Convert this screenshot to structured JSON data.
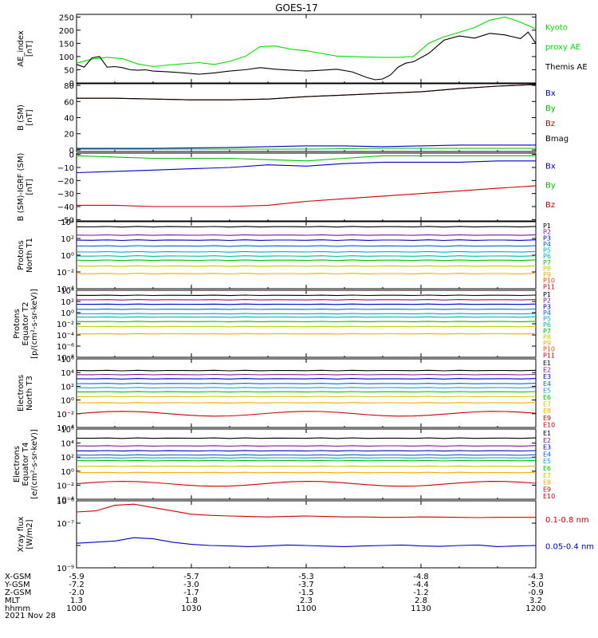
{
  "chart_data": {
    "type": "line",
    "title": "GOES-17",
    "date_label": "2021 Nov 28",
    "x_range_minutes": [
      0,
      120
    ],
    "x_ticks": [
      "1000",
      "1030",
      "1100",
      "1130",
      "1200"
    ],
    "ephemeris": [
      {
        "label": "X-GSM",
        "values": [
          "-5.9",
          "-5.7",
          "-5.3",
          "-4.8",
          "-4.3"
        ]
      },
      {
        "label": "Y-GSM",
        "values": [
          "-7.2",
          "-3.0",
          "-3.7",
          "-4.4",
          "-5.0"
        ]
      },
      {
        "label": "Z-GSM",
        "values": [
          "-2.0",
          "-1.7",
          "-1.5",
          "-1.2",
          "-0.9"
        ]
      },
      {
        "label": "MLT",
        "values": [
          "1.3",
          "1.8",
          "2.3",
          "2.8",
          "3.2"
        ]
      },
      {
        "label": "hhmm",
        "values": [
          "1000",
          "1030",
          "1100",
          "1130",
          "1200"
        ]
      }
    ],
    "panels": [
      {
        "id": "ae",
        "ylabel": [
          "AE_index",
          "[nT]"
        ],
        "scale": "linear",
        "ylim": [
          0,
          260
        ],
        "ticks": [
          0,
          50,
          100,
          150,
          200,
          250
        ],
        "tick_labels": [
          "0",
          "50",
          "100",
          "150",
          "200",
          "250"
        ],
        "series": [
          {
            "name": "Kyoto proxy AE",
            "color": "#00e000",
            "x": [
              0,
              4,
              8,
              12,
              16,
              20,
              24,
              28,
              32,
              36,
              40,
              44,
              48,
              52,
              56,
              60,
              64,
              68,
              72,
              76,
              80,
              84,
              88,
              92,
              96,
              100,
              104,
              108,
              112,
              116,
              120
            ],
            "y": [
              75,
              90,
              97,
              92,
              72,
              62,
              68,
              73,
              77,
              70,
              82,
              100,
              138,
              140,
              128,
              122,
              112,
              102,
              100,
              98,
              97,
              97,
              100,
              150,
              175,
              192,
              210,
              238,
              250,
              230,
              205
            ]
          },
          {
            "name": "Themis AE",
            "color": "#000000",
            "x": [
              0,
              2,
              4,
              6,
              8,
              10,
              12,
              14,
              16,
              18,
              20,
              24,
              28,
              32,
              36,
              40,
              44,
              48,
              52,
              56,
              60,
              64,
              68,
              72,
              76,
              78,
              80,
              82,
              84,
              86,
              88,
              92,
              96,
              100,
              104,
              108,
              112,
              116,
              118,
              120
            ],
            "y": [
              70,
              60,
              95,
              100,
              60,
              62,
              58,
              50,
              48,
              50,
              45,
              42,
              38,
              33,
              38,
              45,
              50,
              58,
              52,
              48,
              45,
              48,
              52,
              42,
              20,
              12,
              15,
              30,
              60,
              75,
              80,
              112,
              162,
              178,
              170,
              188,
              182,
              168,
              193,
              150
            ]
          }
        ]
      },
      {
        "id": "b_sm",
        "ylabel": [
          "B (SM)",
          "[nT]"
        ],
        "scale": "linear",
        "ylim": [
          -2,
          82
        ],
        "ticks": [
          0,
          20,
          40,
          60,
          80
        ],
        "tick_labels": [
          "0",
          "20",
          "40",
          "60",
          "80"
        ],
        "series": [
          {
            "name": "Bx",
            "color": "#0000cc",
            "x": [
              0,
              20,
              40,
              60,
              70,
              80,
              90,
              100,
              110,
              120
            ],
            "y": [
              2,
              2,
              3,
              5,
              5,
              4,
              5,
              6,
              6,
              6
            ]
          },
          {
            "name": "By",
            "color": "#00c000",
            "x": [
              0,
              20,
              40,
              60,
              80,
              100,
              120
            ],
            "y": [
              1,
              1,
              1,
              1,
              2,
              2,
              2
            ]
          },
          {
            "name": "Bz",
            "color": "#cc0000",
            "x": [
              0,
              10,
              20,
              30,
              40,
              50,
              60,
              70,
              80,
              90,
              100,
              110,
              120
            ],
            "y": [
              64,
              64,
              63,
              62,
              62,
              63,
              66,
              68,
              70,
              72,
              76,
              79,
              81
            ]
          },
          {
            "name": "Bmag",
            "color": "#000000",
            "x": [
              0,
              10,
              20,
              30,
              40,
              50,
              60,
              70,
              80,
              90,
              100,
              110,
              120
            ],
            "y": [
              64,
              64,
              63,
              62,
              62,
              63,
              66,
              68,
              70,
              72,
              76,
              79,
              81
            ]
          }
        ]
      },
      {
        "id": "b_igrf",
        "ylabel": [
          "B (SM)-IGRF (SM)",
          "[nT]"
        ],
        "scale": "linear",
        "ylim": [
          -51,
          1
        ],
        "ticks": [
          0,
          -10,
          -20,
          -30,
          -40,
          -50
        ],
        "tick_labels": [
          "0",
          "−10",
          "−20",
          "−30",
          "−40",
          "−50"
        ],
        "series": [
          {
            "name": "Bx",
            "color": "#0000cc",
            "x": [
              0,
              10,
              20,
              30,
              40,
              50,
              60,
              70,
              80,
              90,
              100,
              110,
              120
            ],
            "y": [
              -14,
              -13,
              -12,
              -11,
              -10,
              -8,
              -9,
              -7,
              -6,
              -6,
              -6,
              -5,
              -5
            ]
          },
          {
            "name": "By",
            "color": "#00c000",
            "x": [
              0,
              10,
              20,
              30,
              40,
              50,
              60,
              70,
              80,
              90,
              100,
              110,
              120
            ],
            "y": [
              -1,
              -2,
              -3,
              -3,
              -3,
              -4,
              -5,
              -3,
              -1,
              -1,
              -1,
              -1,
              -1
            ]
          },
          {
            "name": "Bz",
            "color": "#cc0000",
            "x": [
              0,
              10,
              20,
              30,
              40,
              50,
              60,
              70,
              80,
              90,
              100,
              110,
              120
            ],
            "y": [
              -39,
              -39,
              -40,
              -40,
              -40,
              -39,
              -36,
              -34,
              -32,
              -30,
              -28,
              -26,
              -24
            ]
          }
        ]
      },
      {
        "id": "p_north",
        "ylabel": [
          "Protons",
          "North T1"
        ],
        "scale": "log",
        "ylim_log10": [
          -4,
          4
        ],
        "ticks": [
          -4,
          -2,
          0,
          2,
          4
        ],
        "tick_labels": [
          "10⁻⁴",
          "10⁻²",
          "10⁰",
          "10²",
          "10⁴"
        ],
        "series": [
          {
            "name": "P1",
            "color": "#000000",
            "log10_level": 3.4
          },
          {
            "name": "P2",
            "color": "#7a1a8a",
            "log10_level": 2.4
          },
          {
            "name": "P3",
            "color": "#0000cc",
            "log10_level": 1.8
          },
          {
            "name": "P4",
            "color": "#0066dd",
            "log10_level": 1.1
          },
          {
            "name": "P5",
            "color": "#00a8e0",
            "log10_level": 0.4
          },
          {
            "name": "P6",
            "color": "#00b8a0",
            "log10_level": -0.1
          },
          {
            "name": "P7",
            "color": "#00c000",
            "log10_level": -0.6
          },
          {
            "name": "P8",
            "color": "#c8c800",
            "log10_level": -1.3
          },
          {
            "name": "P9",
            "color": "#ffaa00",
            "log10_level": -2.2
          },
          {
            "name": "P10",
            "color": "#ff4400",
            "log10_level": -5
          },
          {
            "name": "P11",
            "color": "#cc0000",
            "log10_level": -5
          }
        ]
      },
      {
        "id": "p_equator",
        "ylabel": [
          "Protons",
          "Equator T2",
          "[p/(cm²-s-sr-keV)]"
        ],
        "scale": "log",
        "ylim_log10": [
          -8,
          4
        ],
        "ticks": [
          -8,
          -6,
          -4,
          -2,
          0,
          2,
          4
        ],
        "tick_labels": [
          "10⁻⁸",
          "10⁻⁶",
          "10⁻⁴",
          "10⁻²",
          "10⁰",
          "10²",
          "10⁴"
        ],
        "series": [
          {
            "name": "P1",
            "color": "#000000",
            "log10_level": 3.1
          },
          {
            "name": "P2",
            "color": "#7a1a8a",
            "log10_level": 2.3
          },
          {
            "name": "P3",
            "color": "#0000cc",
            "log10_level": 1.5
          },
          {
            "name": "P4",
            "color": "#0066dd",
            "log10_level": 0.6
          },
          {
            "name": "P5",
            "color": "#00a8e0",
            "log10_level": -0.2
          },
          {
            "name": "P6",
            "color": "#00b8a0",
            "log10_level": -0.8
          },
          {
            "name": "P7",
            "color": "#00c000",
            "log10_level": -1.6
          },
          {
            "name": "P8",
            "color": "#c8c800",
            "log10_level": -2.5
          },
          {
            "name": "P9",
            "color": "#ffaa00",
            "log10_level": -3.8
          },
          {
            "name": "P10",
            "color": "#ff4400",
            "log10_level": -10
          },
          {
            "name": "P11",
            "color": "#cc0000",
            "log10_level": -10
          }
        ]
      },
      {
        "id": "e_north",
        "ylabel": [
          "Electrons",
          "North T3"
        ],
        "scale": "log",
        "ylim_log10": [
          -4,
          6
        ],
        "ticks": [
          -4,
          -2,
          0,
          2,
          4,
          6
        ],
        "tick_labels": [
          "10⁻⁴",
          "10⁻²",
          "10⁰",
          "10²",
          "10⁴",
          "10⁶"
        ],
        "series": [
          {
            "name": "E1",
            "color": "#000000",
            "log10_level": 4.3
          },
          {
            "name": "E2",
            "color": "#7a1a8a",
            "log10_level": 3.7
          },
          {
            "name": "E3",
            "color": "#0000cc",
            "log10_level": 3.1
          },
          {
            "name": "E4",
            "color": "#0066dd",
            "log10_level": 2.4
          },
          {
            "name": "E5",
            "color": "#00a8e0",
            "log10_level": 1.8
          },
          {
            "name": "E6",
            "color": "#00c000",
            "log10_level": 1.2
          },
          {
            "name": "E7",
            "color": "#c8c800",
            "log10_level": 0.5
          },
          {
            "name": "E8",
            "color": "#ffaa00",
            "log10_level": -0.4
          },
          {
            "name": "E9",
            "color": "#cc0000",
            "log10_level": -2.0
          },
          {
            "name": "E10",
            "color": "#cc0000",
            "log10_level": -10
          }
        ]
      },
      {
        "id": "e_equator",
        "ylabel": [
          "Electrons",
          "Equator T4",
          "[e/(cm²-s-sr-keV)]"
        ],
        "scale": "log",
        "ylim_log10": [
          -4,
          6
        ],
        "ticks": [
          -4,
          -2,
          0,
          2,
          4,
          6
        ],
        "tick_labels": [
          "10⁻⁴",
          "10⁻²",
          "10⁰",
          "10²",
          "10⁴",
          "10⁶"
        ],
        "series": [
          {
            "name": "E1",
            "color": "#000000",
            "log10_level": 4.7
          },
          {
            "name": "E2",
            "color": "#7a1a8a",
            "log10_level": 3.6
          },
          {
            "name": "E3",
            "color": "#0000cc",
            "log10_level": 2.9
          },
          {
            "name": "E4",
            "color": "#0066dd",
            "log10_level": 2.3
          },
          {
            "name": "E5",
            "color": "#00a8e0",
            "log10_level": 1.9
          },
          {
            "name": "E6",
            "color": "#00c000",
            "log10_level": 1.5
          },
          {
            "name": "E7",
            "color": "#c8c800",
            "log10_level": 0.7
          },
          {
            "name": "E8",
            "color": "#ffaa00",
            "log10_level": -0.2
          },
          {
            "name": "E9",
            "color": "#cc0000",
            "log10_level": -1.8
          },
          {
            "name": "E10",
            "color": "#cc0000",
            "log10_level": -10
          }
        ]
      },
      {
        "id": "xray",
        "ylabel": [
          "Xray flux",
          "[W/m2]"
        ],
        "scale": "log",
        "ylim_log10": [
          -9,
          -6
        ],
        "ticks": [
          -9,
          -8,
          -7,
          -6
        ],
        "tick_labels": [
          "10⁻⁹",
          "",
          "10⁻⁷",
          "10⁻⁶"
        ],
        "series": [
          {
            "name": "0.1-0.8 nm",
            "color": "#cc0000",
            "x": [
              0,
              5,
              10,
              15,
              20,
              25,
              30,
              35,
              40,
              45,
              50,
              55,
              60,
              65,
              70,
              75,
              80,
              85,
              90,
              95,
              100,
              105,
              110,
              115,
              120
            ],
            "y_log10": [
              -6.5,
              -6.45,
              -6.2,
              -6.15,
              -6.3,
              -6.45,
              -6.6,
              -6.65,
              -6.68,
              -6.7,
              -6.72,
              -6.7,
              -6.68,
              -6.7,
              -6.72,
              -6.72,
              -6.74,
              -6.74,
              -6.72,
              -6.73,
              -6.74,
              -6.75,
              -6.74,
              -6.74,
              -6.74
            ]
          },
          {
            "name": "0.05-0.4 nm",
            "color": "#0000cc",
            "x": [
              0,
              5,
              10,
              15,
              20,
              25,
              30,
              35,
              40,
              45,
              50,
              55,
              60,
              65,
              70,
              75,
              80,
              85,
              90,
              95,
              100,
              105,
              110,
              115,
              120
            ],
            "y_log10": [
              -7.9,
              -7.85,
              -7.8,
              -7.65,
              -7.7,
              -7.85,
              -7.95,
              -8.0,
              -8.02,
              -8.05,
              -8.02,
              -7.98,
              -8.0,
              -8.03,
              -8.05,
              -8.02,
              -8.0,
              -7.98,
              -8.02,
              -8.04,
              -8.0,
              -7.98,
              -8.05,
              -8.02,
              -8.0
            ]
          }
        ]
      }
    ],
    "legends": {
      "ae": [
        {
          "text": "Kyoto",
          "color": "#00e000"
        },
        {
          "text": "proxy AE",
          "color": "#00e000"
        },
        {
          "text": "Themis AE",
          "color": "#000000"
        }
      ],
      "b_sm": [
        {
          "text": "Bx",
          "color": "#0000cc"
        },
        {
          "text": "By",
          "color": "#00c000"
        },
        {
          "text": "Bz",
          "color": "#cc0000"
        },
        {
          "text": "Bmag",
          "color": "#000000"
        }
      ],
      "b_igrf": [
        {
          "text": "Bx",
          "color": "#0000cc"
        },
        {
          "text": "By",
          "color": "#00c000"
        },
        {
          "text": "Bz",
          "color": "#cc0000"
        }
      ],
      "xray": [
        {
          "text": "0.1-0.8 nm",
          "color": "#cc0000"
        },
        {
          "text": "0.05-0.4 nm",
          "color": "#0000cc"
        }
      ]
    }
  }
}
